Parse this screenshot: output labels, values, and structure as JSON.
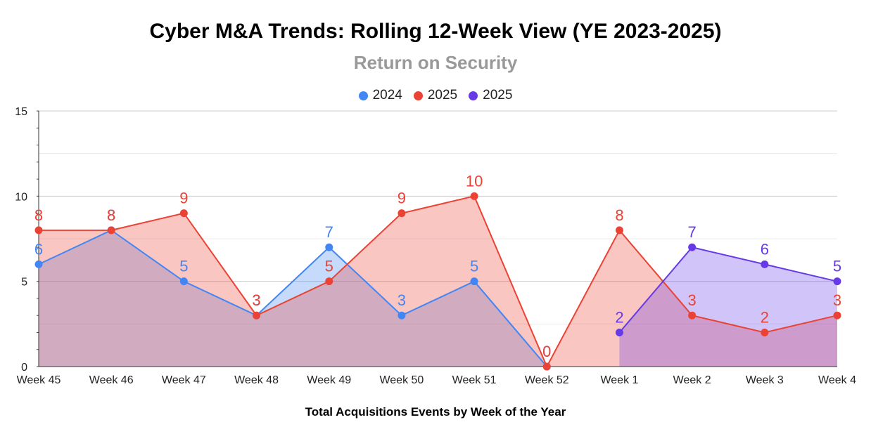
{
  "chart_data": {
    "type": "area",
    "title": "Cyber M&A Trends: Rolling 12-Week View (YE 2023-2025)",
    "subtitle": "Return on Security",
    "xlabel": "Total Acquisitions Events by Week of the Year",
    "ylabel": "",
    "ylim": [
      0,
      15
    ],
    "yticks": [
      "0",
      "5",
      "10",
      "15"
    ],
    "legend_position": "top",
    "categories": [
      "Week 45",
      "Week 46",
      "Week 47",
      "Week 48",
      "Week 49",
      "Week 50",
      "Week 51",
      "Week 52",
      "Week 1",
      "Week 2",
      "Week 3",
      "Week 4"
    ],
    "series": [
      {
        "name": "2024",
        "color": "#4285f4",
        "fill": "#4285f4",
        "values": [
          6,
          8,
          5,
          3,
          7,
          3,
          5,
          0,
          null,
          null,
          null,
          null
        ]
      },
      {
        "name": "2025",
        "color": "#ea4335",
        "fill": "#ea4335",
        "values": [
          8,
          8,
          9,
          3,
          5,
          9,
          10,
          0,
          8,
          3,
          2,
          3
        ]
      },
      {
        "name": "2025",
        "color": "#673ae8",
        "fill": "#673ae8",
        "values": [
          null,
          null,
          null,
          null,
          null,
          null,
          null,
          null,
          2,
          7,
          6,
          5
        ]
      }
    ]
  }
}
